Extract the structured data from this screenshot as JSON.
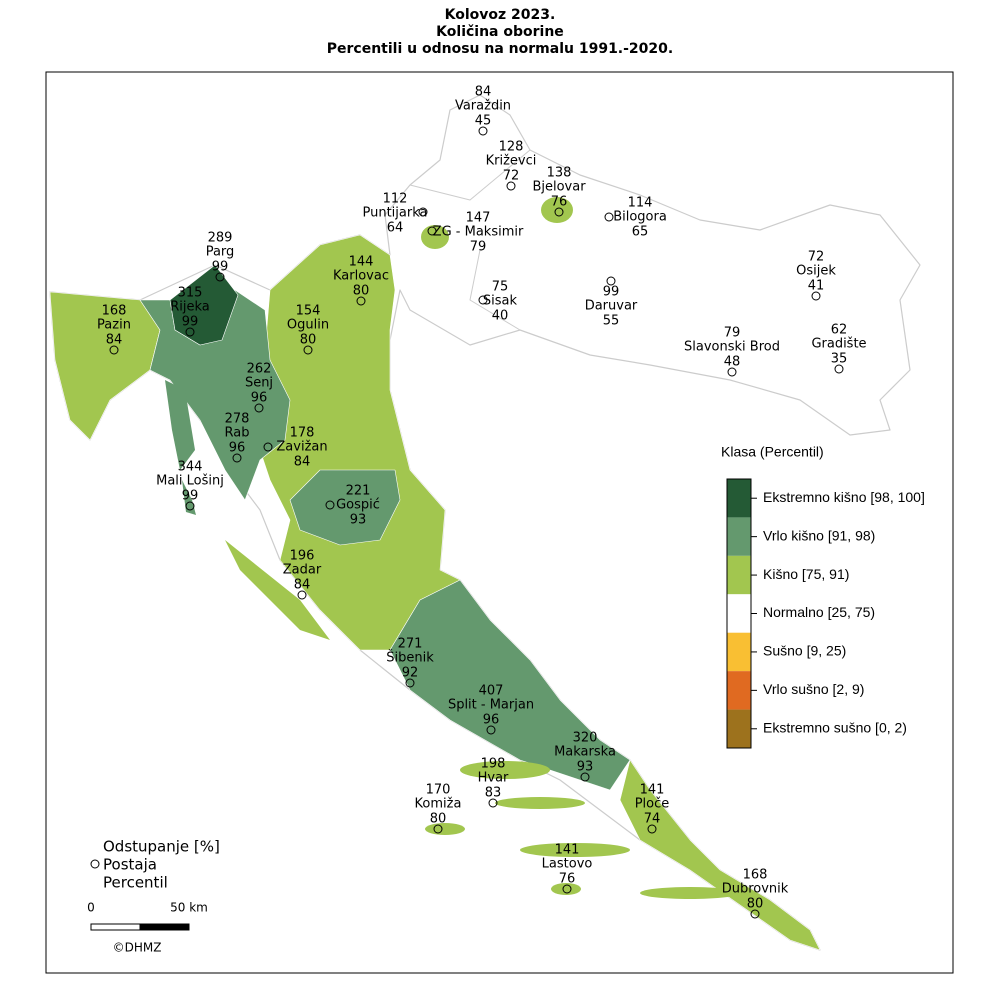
{
  "title": [
    "Kolovoz 2023.",
    "Količina oborine",
    "Percentili u odnosu na normalu 1991.-2020."
  ],
  "stations": [
    {
      "deviation": 84,
      "name": "Varaždin",
      "percentile": 45
    },
    {
      "deviation": 128,
      "name": "Križevci",
      "percentile": 72
    },
    {
      "deviation": 138,
      "name": "Bjelovar",
      "percentile": 76
    },
    {
      "deviation": 112,
      "name": "Puntijarka",
      "percentile": 64
    },
    {
      "deviation": 147,
      "name": "ZG - Maksimir",
      "percentile": 79
    },
    {
      "deviation": 114,
      "name": "Bilogora",
      "percentile": 65
    },
    {
      "deviation": 289,
      "name": "Parg",
      "percentile": 99
    },
    {
      "deviation": 315,
      "name": "Rijeka",
      "percentile": 99
    },
    {
      "deviation": 168,
      "name": "Pazin",
      "percentile": 84
    },
    {
      "deviation": 144,
      "name": "Karlovac",
      "percentile": 80
    },
    {
      "deviation": 154,
      "name": "Ogulin",
      "percentile": 80
    },
    {
      "deviation": 75,
      "name": "Sisak",
      "percentile": 40
    },
    {
      "deviation": 99,
      "name": "Daruvar",
      "percentile": 55
    },
    {
      "deviation": 72,
      "name": "Osijek",
      "percentile": 41
    },
    {
      "deviation": 79,
      "name": "Slavonski Brod",
      "percentile": 48
    },
    {
      "deviation": 62,
      "name": "Gradište",
      "percentile": 35
    },
    {
      "deviation": 262,
      "name": "Senj",
      "percentile": 96
    },
    {
      "deviation": 278,
      "name": "Rab",
      "percentile": 96
    },
    {
      "deviation": 178,
      "name": "Zavižan",
      "percentile": 84
    },
    {
      "deviation": 344,
      "name": "Mali Lošinj",
      "percentile": 99
    },
    {
      "deviation": 221,
      "name": "Gospić",
      "percentile": 93
    },
    {
      "deviation": 196,
      "name": "Zadar",
      "percentile": 84
    },
    {
      "deviation": 271,
      "name": "Šibenik",
      "percentile": 92
    },
    {
      "deviation": 407,
      "name": "Split - Marjan",
      "percentile": 96
    },
    {
      "deviation": 320,
      "name": "Makarska",
      "percentile": 93
    },
    {
      "deviation": 198,
      "name": "Hvar",
      "percentile": 83
    },
    {
      "deviation": 141,
      "name": "Ploče",
      "percentile": 74
    },
    {
      "deviation": 170,
      "name": "Komiža",
      "percentile": 80
    },
    {
      "deviation": 141,
      "name": "Lastovo",
      "percentile": 76
    },
    {
      "deviation": 168,
      "name": "Dubrovnik",
      "percentile": 80
    }
  ],
  "legend": {
    "title": "Klasa (Percentil)",
    "classes": [
      {
        "label": "Ekstremno kišno [98, 100]",
        "color": "#245a35"
      },
      {
        "label": "Vrlo kišno [91, 98)",
        "color": "#64996e"
      },
      {
        "label": "Kišno [75, 91)",
        "color": "#a2c64f"
      },
      {
        "label": "Normalno [25, 75)",
        "color": "#ffffff"
      },
      {
        "label": "Sušno [9, 25)",
        "color": "#f9bf33"
      },
      {
        "label": "Vrlo sušno [2, 9)",
        "color": "#e06a21"
      },
      {
        "label": "Ekstremno sušno [0, 2)",
        "color": "#9d721d"
      }
    ]
  },
  "key": {
    "title": "Odstupanje [%]",
    "station": "Postaja",
    "percentile": "Percentil"
  },
  "scale": {
    "start": 0,
    "end": "50 km"
  },
  "credit": "©DHMZ"
}
